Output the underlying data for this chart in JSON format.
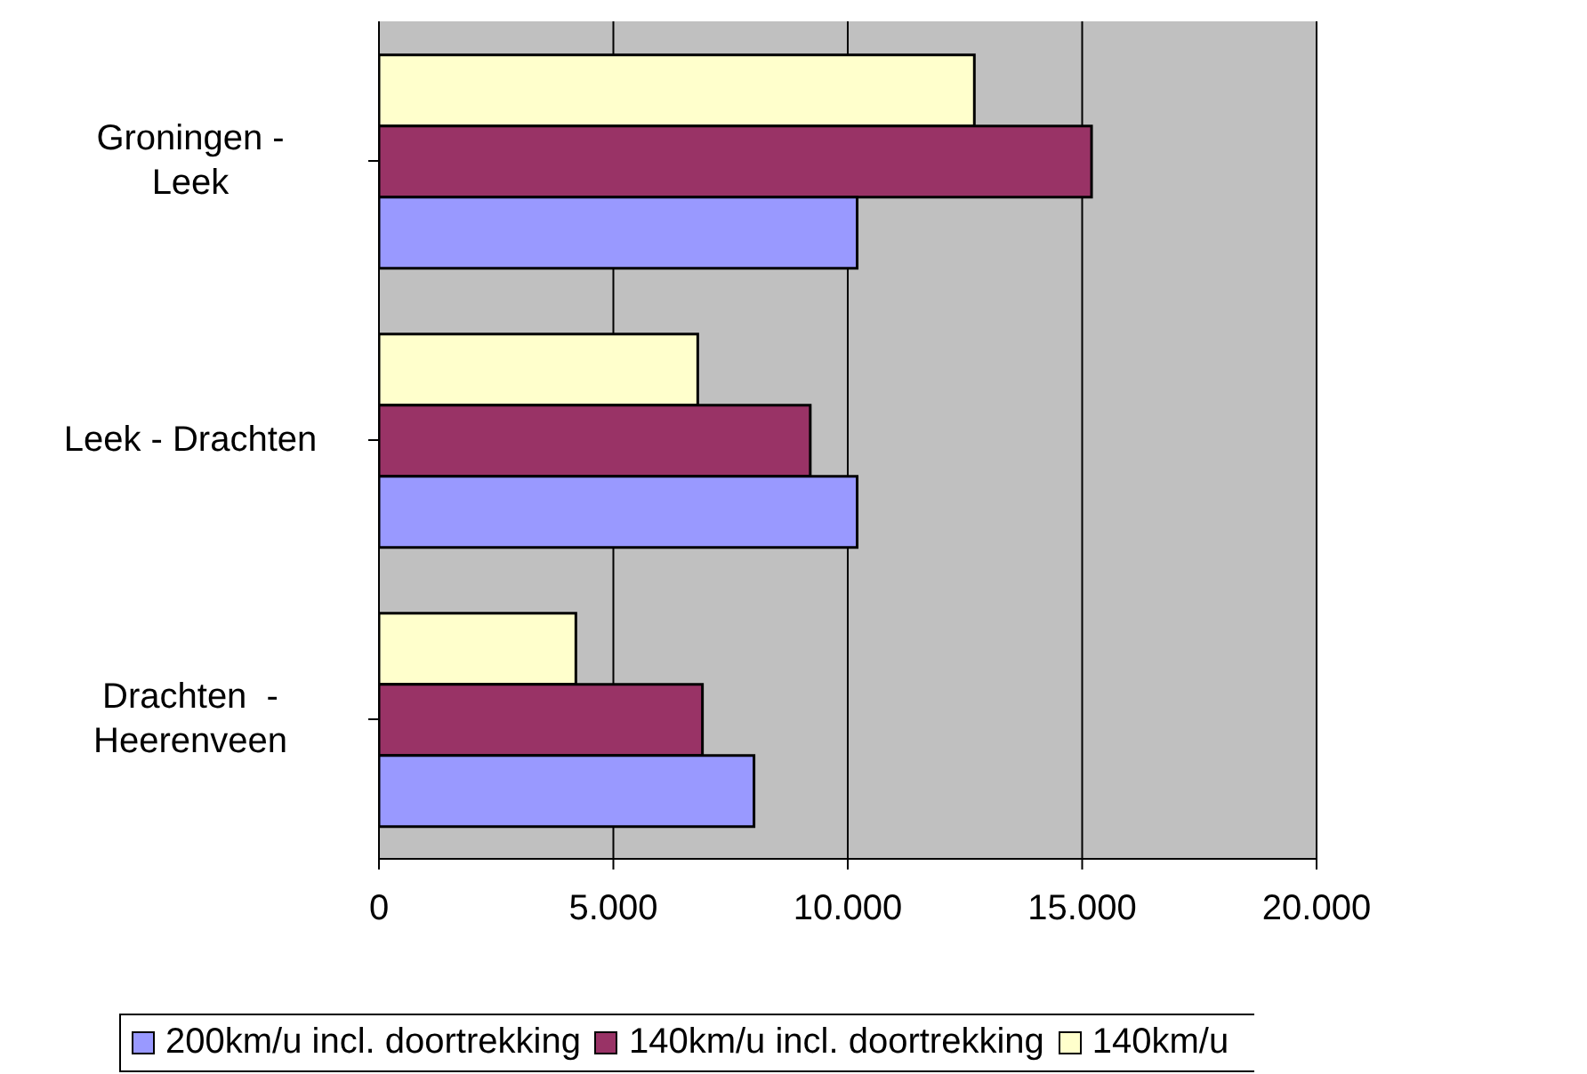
{
  "chart_data": {
    "type": "bar",
    "orientation": "horizontal",
    "categories": [
      "Groningen - Leek",
      "Leek - Drachten",
      "Drachten  - Heerenveen"
    ],
    "series": [
      {
        "name": "200km/u incl. doortrekking",
        "color": "#9999ff",
        "values": [
          10200,
          10200,
          8000
        ]
      },
      {
        "name": "140km/u incl. doortrekking",
        "color": "#993366",
        "values": [
          15200,
          9200,
          6900
        ]
      },
      {
        "name": "140km/u",
        "color": "#ffffcc",
        "values": [
          12700,
          6800,
          4200
        ]
      }
    ],
    "xlim": [
      0,
      20000
    ],
    "xticks": [
      0,
      {
        "value": 5000,
        "label": "5.000"
      },
      {
        "value": 10000,
        "label": "10.000"
      },
      {
        "value": 15000,
        "label": "15.000"
      },
      {
        "value": 20000,
        "label": "20.000"
      }
    ],
    "grid": "x",
    "legend": "bottom"
  }
}
